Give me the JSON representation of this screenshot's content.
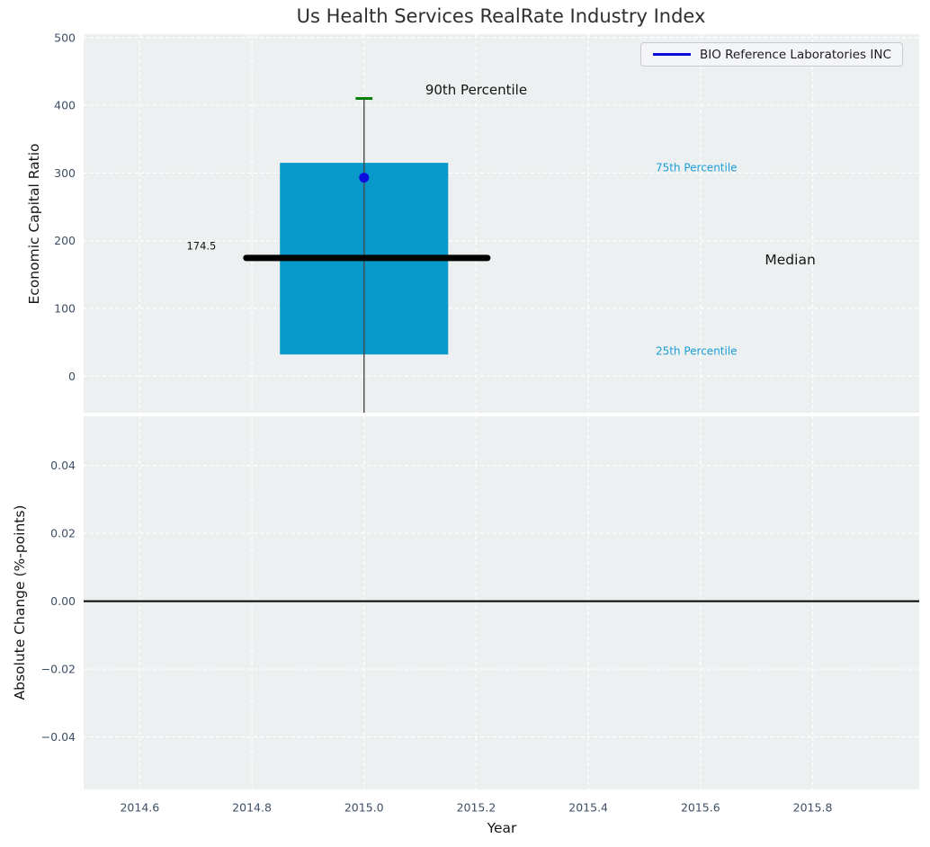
{
  "title": "Us Health Services RealRate Industry Index",
  "legend": {
    "label": "BIO Reference Laboratories INC",
    "line_color": "#0d0de0"
  },
  "colors": {
    "figure_bg": "#ffffff",
    "axes_bg": "#edf0f1",
    "grid": "#ffffff",
    "tick_label": "#3e4f66",
    "title": "#2f2f2f",
    "axis_label": "#151515",
    "box_fill": "#0899ca",
    "median_line": "#000000",
    "whisker": "#4a4a4a",
    "cap": "#008000",
    "point": "#0d0de0",
    "zero_line": "#000000",
    "percentile_label": "#1a9ed6",
    "annotation": "#141414"
  },
  "chart_data": [
    {
      "type": "boxplot",
      "title": "Us Health Services RealRate Industry Index",
      "ylabel": "Economic Capital Ratio",
      "xlim": [
        2014.5,
        2015.99
      ],
      "ylim": [
        -54,
        505
      ],
      "yticks": [
        0,
        100,
        200,
        300,
        400,
        500
      ],
      "ytick_labels": [
        "0",
        "100",
        "200",
        "300",
        "400",
        "500"
      ],
      "grid": true,
      "legend_position": "upper right",
      "box": {
        "x": 2015.0,
        "box_width": 0.3,
        "q1": 32,
        "q3": 315,
        "median": 174.5,
        "median_line_x": [
          2014.79,
          2015.22
        ],
        "whisker_high": 410,
        "whisker_low_clipped": -54,
        "cap_half_width": 0.015
      },
      "point": {
        "name": "BIO Reference Laboratories INC",
        "x": 2015.0,
        "y": 293
      },
      "annotations": [
        {
          "id": "p90-label",
          "text": "90th Percentile",
          "x": 2015.2,
          "y": 423,
          "anchor": "middle",
          "color_key": "annotation",
          "size": 15
        },
        {
          "id": "median-value-label",
          "text": "174.5",
          "x": 2014.71,
          "y": 192,
          "anchor": "middle",
          "color_key": "annotation",
          "size": 11.5
        },
        {
          "id": "p75-label",
          "text": "75th Percentile",
          "x": 2015.52,
          "y": 308,
          "anchor": "start",
          "color_key": "percentile_label",
          "size": 12
        },
        {
          "id": "median-label",
          "text": "Median",
          "x": 2015.76,
          "y": 172,
          "anchor": "middle",
          "color_key": "annotation",
          "size": 15.5
        },
        {
          "id": "p25-label",
          "text": "25th Percentile",
          "x": 2015.52,
          "y": 37,
          "anchor": "start",
          "color_key": "percentile_label",
          "size": 12
        }
      ]
    },
    {
      "type": "line",
      "ylabel": "Absolute Change (%-points)",
      "xlabel": "Year",
      "xlim": [
        2014.5,
        2015.99
      ],
      "xticks": [
        2014.6,
        2014.8,
        2015.0,
        2015.2,
        2015.4,
        2015.6,
        2015.8
      ],
      "xtick_labels": [
        "2014.6",
        "2014.8",
        "2015.0",
        "2015.2",
        "2015.4",
        "2015.6",
        "2015.8"
      ],
      "ylim": [
        -0.0555,
        0.0545
      ],
      "yticks": [
        0.04,
        0.02,
        0.0,
        -0.02,
        -0.04
      ],
      "ytick_labels": [
        "0.04",
        "0.02",
        "0.00",
        "−0.02",
        "−0.04"
      ],
      "zero_line_y": 0.0,
      "grid": true,
      "series": []
    }
  ]
}
